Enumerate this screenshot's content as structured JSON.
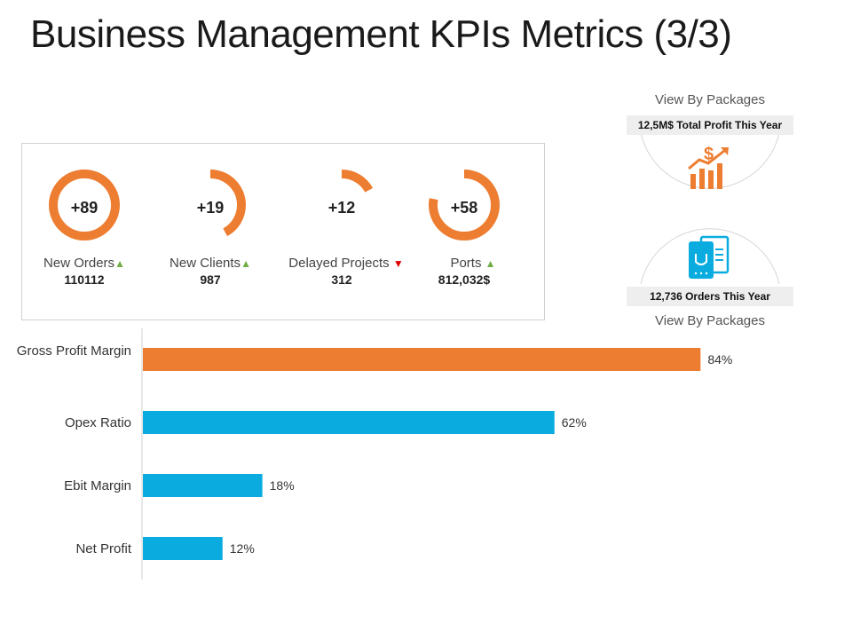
{
  "title": "Business Management KPIs Metrics (3/3)",
  "kpis": [
    {
      "number": "+89",
      "label": "New Orders",
      "trend": "up",
      "value": "110112",
      "ring_fraction": 1.0
    },
    {
      "number": "+19",
      "label": "New Clients",
      "trend": "up",
      "value": "987",
      "ring_fraction": 0.42
    },
    {
      "number": "+12",
      "label": "Delayed Projects",
      "trend": "down",
      "value": "312",
      "ring_fraction": 0.17
    },
    {
      "number": "+58",
      "label": "Ports",
      "trend": "up",
      "value": "812,032$",
      "ring_fraction": 0.78
    }
  ],
  "packages": {
    "top_text": "View By Packages",
    "top_banner": "12,5M$ Total Profit This Year",
    "top_icon": "profit-growth-icon",
    "bottom_banner": "12,736  Orders This Year",
    "bottom_icon": "orders-receipt-icon",
    "bottom_text": "View By Packages"
  },
  "colors": {
    "orange": "#ed7d31",
    "blue": "#0aace0",
    "up": "#70ad47",
    "down": "#e00000"
  },
  "chart_data": {
    "type": "bar",
    "orientation": "horizontal",
    "categories": [
      "Gross Profit Margin",
      "Opex Ratio",
      "Ebit Margin",
      "Net Profit"
    ],
    "values": [
      84,
      62,
      18,
      12
    ],
    "data_labels": [
      "84%",
      "62%",
      "18%",
      "12%"
    ],
    "bar_colors": [
      "#ed7d31",
      "#0aace0",
      "#0aace0",
      "#0aace0"
    ],
    "xlim": [
      0,
      100
    ],
    "grid": false
  }
}
